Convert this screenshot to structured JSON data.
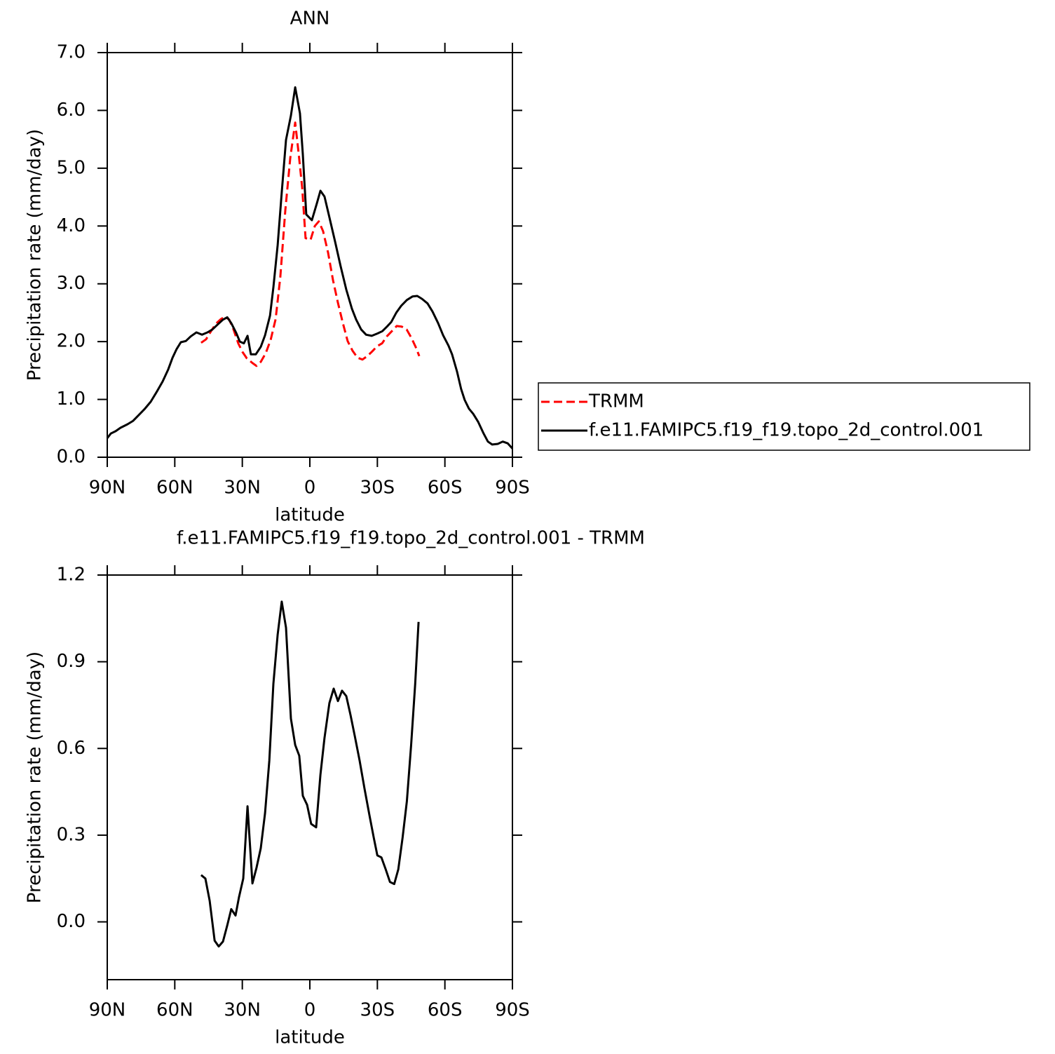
{
  "chart_data": [
    {
      "type": "line",
      "title": "ANN",
      "xlabel": "latitude",
      "ylabel": "Precipitation rate (mm/day)",
      "xlim": [
        90,
        -90
      ],
      "xticks": [
        {
          "value": 90,
          "label": "90N"
        },
        {
          "value": 60,
          "label": "60N"
        },
        {
          "value": 30,
          "label": "30N"
        },
        0,
        {
          "value": -30,
          "label": "30S"
        },
        {
          "value": -60,
          "label": "60S"
        },
        {
          "value": -90,
          "label": "90S"
        }
      ],
      "ylim": [
        0,
        7
      ],
      "yticks": [
        {
          "value": 0,
          "label": "0.0"
        },
        {
          "value": 1,
          "label": "1.0"
        },
        {
          "value": 2,
          "label": "2.0"
        },
        {
          "value": 3,
          "label": "3.0"
        },
        {
          "value": 4,
          "label": "4.0"
        },
        {
          "value": 5,
          "label": "5.0"
        },
        {
          "value": 6,
          "label": "6.0"
        },
        {
          "value": 7,
          "label": "7.0"
        }
      ],
      "legend": "right",
      "series": [
        {
          "name": "TRMM",
          "color": "#ff0000",
          "style": "dashed",
          "x": [
            48.3,
            46.1,
            43.9,
            41.7,
            39.5,
            37.7,
            35.8,
            33.9,
            31.8,
            29.9,
            28.0,
            25.5,
            23.7,
            21.8,
            19.6,
            17.4,
            15.2,
            13.1,
            10.9,
            8.7,
            6.5,
            5.0,
            3.4,
            1.9,
            -0.3,
            -2.2,
            -4.0,
            -5.9,
            -8.1,
            -10.3,
            -12.5,
            -14.6,
            -16.8,
            -19.0,
            -21.2,
            -23.4,
            -25.5,
            -27.7,
            -29.9,
            -32.1,
            -34.2,
            -36.4,
            -38.6,
            -40.8,
            -43.0,
            -45.2,
            -47.0,
            -48.6
          ],
          "values": [
            1.98,
            2.04,
            2.18,
            2.31,
            2.39,
            2.43,
            2.38,
            2.21,
            1.97,
            1.82,
            1.71,
            1.63,
            1.58,
            1.65,
            1.8,
            2.03,
            2.39,
            3.12,
            4.27,
            5.18,
            5.79,
            5.27,
            4.66,
            3.79,
            3.76,
            4.0,
            4.08,
            3.91,
            3.54,
            3.06,
            2.67,
            2.33,
            2.01,
            1.84,
            1.72,
            1.69,
            1.75,
            1.83,
            1.92,
            1.97,
            2.09,
            2.18,
            2.27,
            2.26,
            2.21,
            2.06,
            1.91,
            1.75
          ]
        },
        {
          "name": "f.e11.FAMIPC5.f19_f19.topo_2d_control.001",
          "color": "#000000",
          "style": "solid",
          "x": [
            90,
            88.4,
            86.3,
            84.1,
            81,
            78.5,
            76,
            73.5,
            70.7,
            68.2,
            65.4,
            62.9,
            61,
            59.2,
            57.3,
            55.1,
            52.9,
            50.4,
            47.9,
            45.5,
            43.3,
            41.1,
            38.6,
            36.7,
            34.9,
            32.7,
            31.1,
            29.3,
            27.7,
            26.2,
            24,
            21.8,
            19.9,
            17.7,
            16.2,
            14.3,
            12.5,
            10.6,
            8.4,
            6.5,
            4.4,
            3.1,
            1.6,
            -0.9,
            -3.1,
            -4.7,
            -6.5,
            -8.7,
            -11.2,
            -13.7,
            -16.2,
            -18.7,
            -20.6,
            -22.8,
            -25,
            -27.5,
            -30,
            -32.2,
            -34.3,
            -36.2,
            -38.4,
            -40.6,
            -43.1,
            -45.6,
            -47.7,
            -49.8,
            -52.3,
            -54.5,
            -57,
            -59.2,
            -61.6,
            -63.2,
            -65.4,
            -67.2,
            -68.8,
            -70.7,
            -72.6,
            -74.8,
            -77.2,
            -79.1,
            -81,
            -83.5,
            -85.7,
            -87.9,
            -90
          ],
          "values": [
            0.33,
            0.41,
            0.45,
            0.51,
            0.57,
            0.63,
            0.73,
            0.83,
            0.96,
            1.12,
            1.31,
            1.52,
            1.72,
            1.87,
            1.99,
            2.01,
            2.09,
            2.16,
            2.12,
            2.16,
            2.21,
            2.29,
            2.38,
            2.42,
            2.32,
            2.15,
            2.0,
            1.97,
            2.1,
            1.78,
            1.78,
            1.91,
            2.11,
            2.45,
            2.94,
            3.67,
            4.58,
            5.49,
            5.91,
            6.4,
            5.95,
            5.24,
            4.2,
            4.1,
            4.39,
            4.61,
            4.51,
            4.15,
            3.73,
            3.3,
            2.9,
            2.57,
            2.38,
            2.21,
            2.12,
            2.1,
            2.14,
            2.18,
            2.26,
            2.34,
            2.5,
            2.62,
            2.72,
            2.78,
            2.79,
            2.74,
            2.66,
            2.52,
            2.32,
            2.11,
            1.93,
            1.78,
            1.48,
            1.18,
            0.99,
            0.84,
            0.75,
            0.61,
            0.41,
            0.27,
            0.22,
            0.23,
            0.27,
            0.24,
            0.15
          ]
        }
      ]
    },
    {
      "type": "line",
      "title": "f.e11.FAMIPC5.f19_f19.topo_2d_control.001  -  TRMM",
      "xlabel": "latitude",
      "ylabel": "Precipitation rate (mm/day)",
      "xlim": [
        90,
        -90
      ],
      "xticks": [
        {
          "value": 90,
          "label": "90N"
        },
        {
          "value": 60,
          "label": "60N"
        },
        {
          "value": 30,
          "label": "30N"
        },
        0,
        {
          "value": -30,
          "label": "30S"
        },
        {
          "value": -60,
          "label": "60S"
        },
        {
          "value": -90,
          "label": "90S"
        }
      ],
      "ylim": [
        -0.2,
        1.2
      ],
      "yticks": [
        {
          "value": 0,
          "label": "0.0"
        },
        0.3,
        0.6,
        0.9,
        1.2
      ],
      "series": [
        {
          "color": "#000000",
          "style": "solid",
          "x": [
            48.3,
            46.4,
            44.5,
            42.3,
            40.5,
            38.6,
            36.7,
            34.9,
            33.0,
            31.5,
            29.6,
            27.7,
            25.5,
            23.7,
            21.8,
            19.9,
            18.0,
            16.2,
            14.3,
            12.5,
            10.6,
            8.4,
            6.5,
            4.7,
            3.1,
            1.2,
            -0.6,
            -2.8,
            -4.7,
            -6.5,
            -8.7,
            -10.6,
            -12.5,
            -14.3,
            -16.2,
            -18.1,
            -20.0,
            -22.1,
            -24.3,
            -26.5,
            -28.4,
            -30.0,
            -31.8,
            -33.7,
            -35.6,
            -37.5,
            -39.3,
            -41.2,
            -43.1,
            -45.0,
            -46.8,
            -48.3
          ],
          "values": [
            0.162,
            0.15,
            0.073,
            -0.065,
            -0.085,
            -0.068,
            -0.012,
            0.044,
            0.022,
            0.085,
            0.15,
            0.4,
            0.133,
            0.187,
            0.255,
            0.376,
            0.558,
            0.824,
            0.994,
            1.108,
            1.018,
            0.703,
            0.612,
            0.575,
            0.436,
            0.405,
            0.339,
            0.327,
            0.509,
            0.636,
            0.757,
            0.807,
            0.764,
            0.8,
            0.781,
            0.715,
            0.642,
            0.558,
            0.461,
            0.368,
            0.291,
            0.23,
            0.223,
            0.182,
            0.138,
            0.131,
            0.182,
            0.291,
            0.417,
            0.612,
            0.824,
            1.038
          ]
        }
      ]
    }
  ]
}
